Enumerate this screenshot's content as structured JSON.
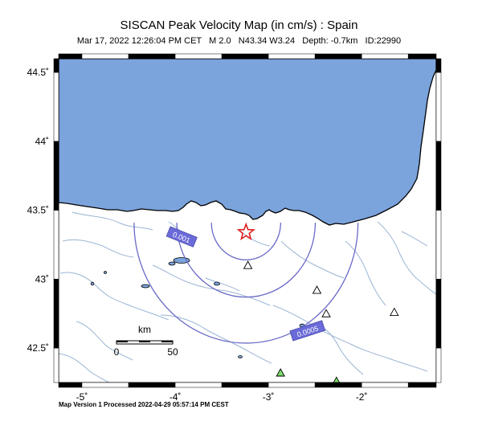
{
  "header": {
    "title": "SISCAN Peak Velocity Map (in cm/s) : Spain",
    "subtitle": "Mar 17, 2022 12:26:04 PM CET   M 2.0   N43.34 W3.24   Depth: -0.7km   ID:22990"
  },
  "footer": {
    "text": "Map Version 1 Processed 2022-04-29 05:57:14 PM CEST"
  },
  "map": {
    "lon_range": [
      -5.25,
      -1.2
    ],
    "lat_range": [
      42.25,
      44.6
    ],
    "lat_ticks": [
      {
        "value": 44.5,
        "label": "44.5˚"
      },
      {
        "value": 44.0,
        "label": "44˚"
      },
      {
        "value": 43.5,
        "label": "43.5˚"
      },
      {
        "value": 43.0,
        "label": "43˚"
      },
      {
        "value": 42.5,
        "label": "42.5˚"
      }
    ],
    "lon_ticks": [
      {
        "value": -5,
        "label": "-5˚"
      },
      {
        "value": -4,
        "label": "-4˚"
      },
      {
        "value": -3,
        "label": "-3˚"
      },
      {
        "value": -2,
        "label": "-2˚"
      }
    ],
    "colors": {
      "sea": "#7ba3dc",
      "land": "#ffffff",
      "rivers": "#9bb5d4",
      "contours": "#6a6ac8",
      "contour_label_bg": "#6a6ad8",
      "epicenter": "#e02020",
      "station_green": "#7ddc6c"
    },
    "epicenter": {
      "lat": 43.34,
      "lon": -3.24,
      "icon": "star"
    },
    "contours": [
      {
        "label": "",
        "radius_km": 30
      },
      {
        "label": "0.001",
        "radius_km": 60
      },
      {
        "label": "0.0005",
        "radius_km": 97
      }
    ],
    "stations": [
      {
        "lat": 43.1,
        "lon": -3.22,
        "type": "triangle-white"
      },
      {
        "lat": 42.92,
        "lon": -2.48,
        "type": "triangle-white"
      },
      {
        "lat": 42.75,
        "lon": -2.38,
        "type": "triangle-white"
      },
      {
        "lat": 42.76,
        "lon": -1.65,
        "type": "triangle-white"
      },
      {
        "lat": 42.32,
        "lon": -2.87,
        "type": "triangle-green"
      },
      {
        "lat": 42.26,
        "lon": -2.27,
        "type": "triangle-green"
      }
    ],
    "scale_bar": {
      "unit": "km",
      "left_label": "0",
      "right_label": "50"
    }
  }
}
